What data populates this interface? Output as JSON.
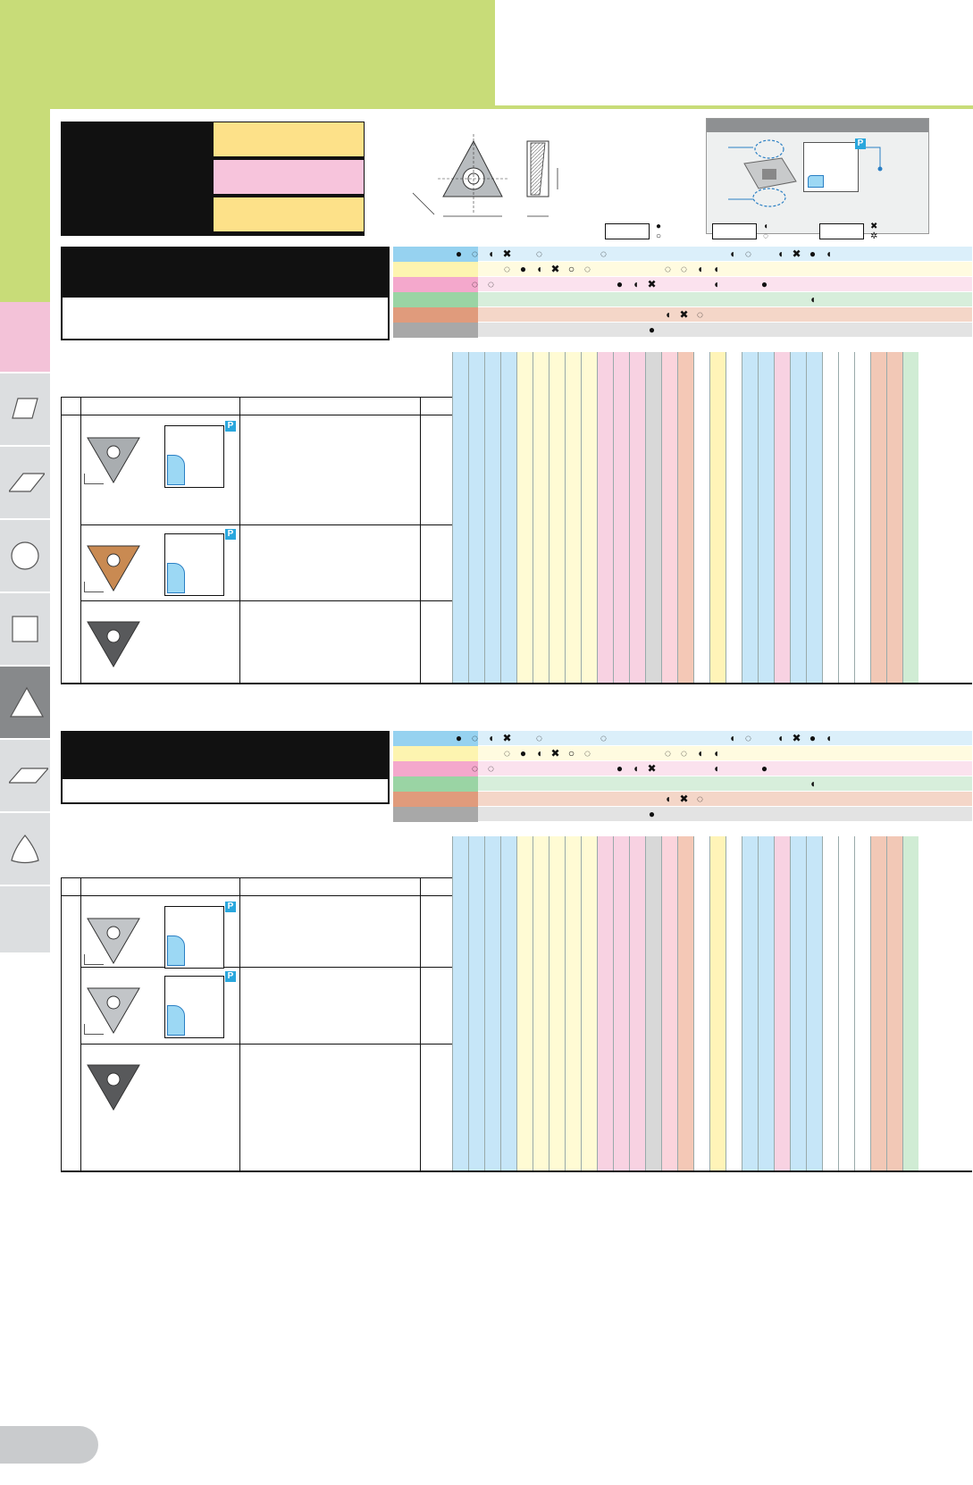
{
  "colors": {
    "banner_green": "#c8dc78",
    "legend_yellow": "#fde189",
    "legend_pink": "#f7c4dc",
    "row_blue": "#96d2f0",
    "row_yellow": "#fdf4b0",
    "row_pink": "#f4a8cc",
    "row_green": "#9ad4a4",
    "row_orange": "#e09b7c",
    "row_gray": "#a8a8a8"
  },
  "sidebar": {
    "tabs": [
      {
        "icon": "pink-blank-icon"
      },
      {
        "icon": "parallelogram-icon"
      },
      {
        "icon": "rhombus-icon"
      },
      {
        "icon": "circle-icon"
      },
      {
        "icon": "square-icon"
      },
      {
        "icon": "triangle-icon",
        "active": true
      },
      {
        "icon": "parallelogram-flat-icon"
      },
      {
        "icon": "trigon-icon"
      }
    ]
  },
  "inset": {
    "badge": "P"
  },
  "sections": [
    {
      "inserts": [
        {
          "color": "gray",
          "badge": "P"
        },
        {
          "color": "gold",
          "badge": "P"
        },
        {
          "color": "dark",
          "badge": ""
        }
      ]
    },
    {
      "inserts": [
        {
          "color": "silver",
          "badge": "P"
        },
        {
          "color": "silver",
          "badge": "P"
        },
        {
          "color": "dark",
          "badge": ""
        }
      ]
    }
  ],
  "material_marks": [
    [
      "●",
      "◌",
      "◖",
      "✖",
      "",
      "◌",
      "",
      "",
      "",
      "◌",
      "",
      "",
      "",
      "",
      "",
      "",
      "",
      "◖",
      "◌",
      "",
      "◖",
      "✖",
      "●",
      "◖"
    ],
    [
      "",
      "",
      "",
      "◌",
      "●",
      "◖",
      "✖",
      "○",
      "◌",
      "",
      "",
      "",
      "",
      "◌",
      "◌",
      "◖",
      "◖",
      "",
      "",
      "",
      "",
      "",
      ""
    ],
    [
      "",
      "◌",
      "◌",
      "",
      "",
      "",
      "",
      "",
      "",
      "",
      "●",
      "◖",
      "✖",
      "",
      "",
      "",
      "◖",
      "",
      "",
      "●",
      "",
      "",
      ""
    ],
    [
      "",
      "",
      "",
      "",
      "",
      "",
      "",
      "",
      "",
      "",
      "",
      "",
      "",
      "",
      "",
      "",
      "",
      "",
      "",
      "",
      "",
      "",
      "◖"
    ],
    [
      "",
      "",
      "",
      "",
      "",
      "",
      "",
      "",
      "",
      "",
      "",
      "",
      "",
      "◖",
      "✖",
      "◌",
      "",
      "",
      "",
      "",
      "",
      "",
      ""
    ],
    [
      "",
      "",
      "",
      "",
      "",
      "",
      "",
      "",
      "",
      "",
      "",
      "",
      "●",
      "",
      "",
      "",
      "",
      "",
      "",
      "",
      "",
      "",
      ""
    ]
  ]
}
